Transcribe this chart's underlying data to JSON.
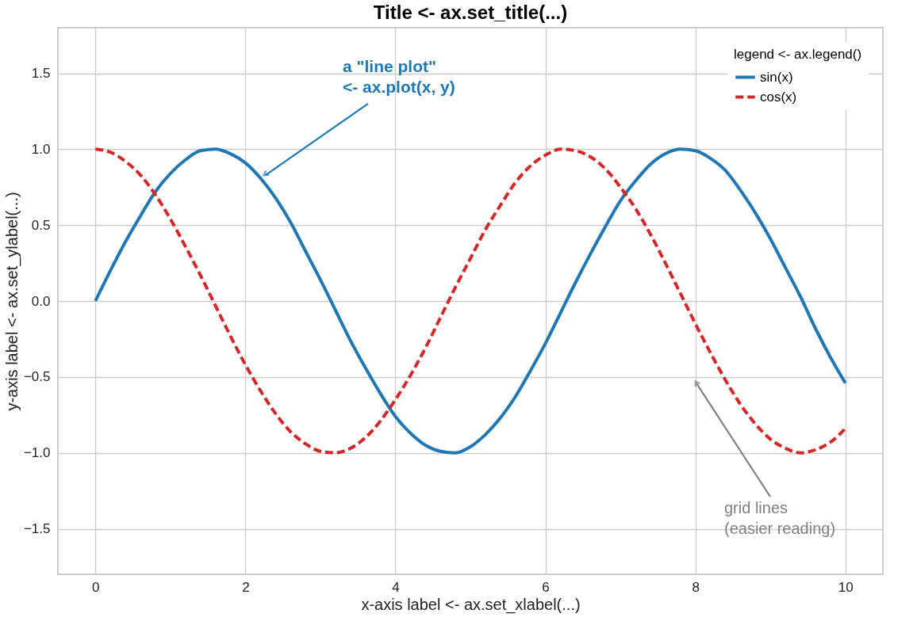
{
  "chart_data": {
    "type": "line",
    "title": "Title  <- ax.set_title(...)",
    "xlabel": "x-axis label  <- ax.set_xlabel(...)",
    "ylabel": "y-axis label  <- ax.set_ylabel(...)",
    "legend_title": "legend <- ax.legend()",
    "x": [
      0,
      0.2,
      0.4,
      0.6,
      0.8,
      1.0,
      1.2,
      1.4,
      1.6,
      1.8,
      2.0,
      2.2,
      2.4,
      2.6,
      2.8,
      3.0,
      3.2,
      3.4,
      3.6,
      3.8,
      4.0,
      4.2,
      4.4,
      4.6,
      4.8,
      5.0,
      5.2,
      5.4,
      5.6,
      5.8,
      6.0,
      6.2,
      6.4,
      6.6,
      6.8,
      7.0,
      7.2,
      7.4,
      7.6,
      7.8,
      8.0,
      8.2,
      8.4,
      8.6,
      8.8,
      9.0,
      9.2,
      9.4,
      9.6,
      9.8,
      10.0
    ],
    "series": [
      {
        "name": "sin(x)",
        "color": "#1f77b4",
        "line_style": "solid",
        "values": [
          0,
          0.2,
          0.39,
          0.56,
          0.72,
          0.84,
          0.93,
          0.99,
          1.0,
          0.97,
          0.91,
          0.81,
          0.68,
          0.52,
          0.33,
          0.14,
          -0.06,
          -0.26,
          -0.44,
          -0.61,
          -0.76,
          -0.87,
          -0.95,
          -0.99,
          -1.0,
          -0.96,
          -0.88,
          -0.77,
          -0.63,
          -0.46,
          -0.28,
          -0.08,
          0.12,
          0.31,
          0.49,
          0.66,
          0.79,
          0.9,
          0.97,
          1.0,
          0.99,
          0.94,
          0.86,
          0.73,
          0.58,
          0.41,
          0.22,
          0.03,
          -0.18,
          -0.37,
          -0.54
        ]
      },
      {
        "name": "cos(x)",
        "color": "#d62728",
        "line_style": "dashed",
        "values": [
          1.0,
          0.98,
          0.92,
          0.83,
          0.7,
          0.54,
          0.36,
          0.17,
          -0.03,
          -0.23,
          -0.42,
          -0.59,
          -0.74,
          -0.86,
          -0.94,
          -0.99,
          -1.0,
          -0.97,
          -0.9,
          -0.79,
          -0.65,
          -0.49,
          -0.31,
          -0.11,
          0.09,
          0.28,
          0.47,
          0.63,
          0.78,
          0.89,
          0.96,
          1.0,
          0.99,
          0.95,
          0.87,
          0.75,
          0.61,
          0.44,
          0.25,
          0.05,
          -0.15,
          -0.34,
          -0.52,
          -0.68,
          -0.81,
          -0.91,
          -0.97,
          -1.0,
          -0.98,
          -0.93,
          -0.84
        ]
      }
    ],
    "xlim": [
      -0.5,
      10.5
    ],
    "ylim": [
      -1.8,
      1.8
    ],
    "xticks": [
      0,
      2,
      4,
      6,
      8,
      10
    ],
    "yticks": [
      {
        "value": -1.5,
        "label": "−1.5"
      },
      {
        "value": -1.0,
        "label": "−1.0"
      },
      {
        "value": -0.5,
        "label": "−0.5"
      },
      {
        "value": 0,
        "label": "0.0"
      },
      {
        "value": 0.5,
        "label": "0.5"
      },
      {
        "value": 1.0,
        "label": "1.0"
      },
      {
        "value": 1.5,
        "label": "1.5"
      }
    ],
    "annotations": [
      {
        "text": "a \"line plot\"\n<- ax.plot(x, y)",
        "x": 2.25,
        "y": 0.83
      },
      "grid lines\n(easier reading)"
    ],
    "grid": true,
    "legend": "top right",
    "marker": "none"
  }
}
